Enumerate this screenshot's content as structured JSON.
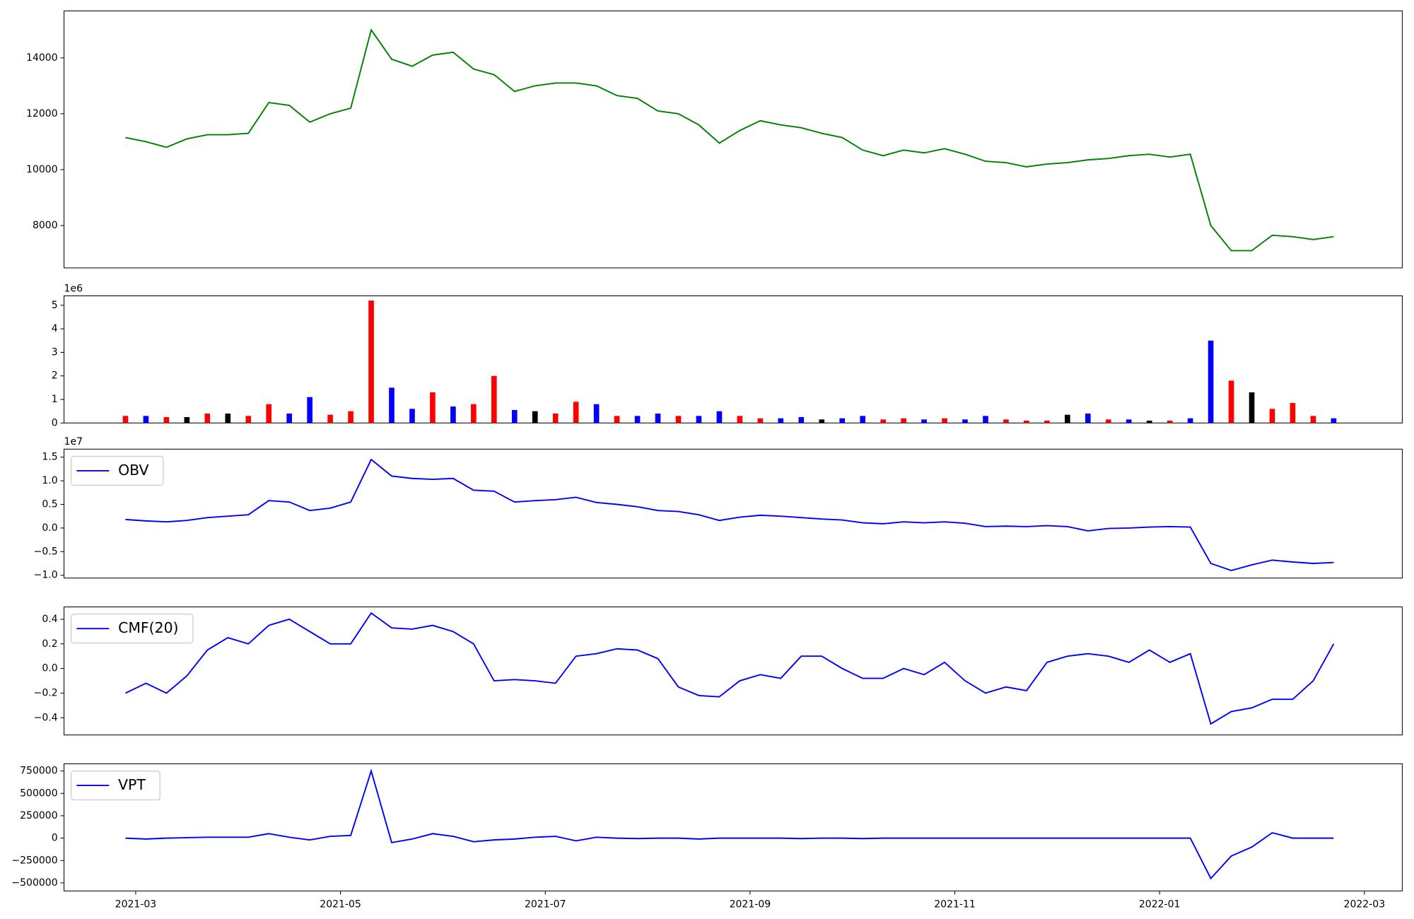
{
  "chart_data": [
    {
      "type": "line",
      "color": "green",
      "x": [
        1.9,
        2.1,
        2.3,
        2.5,
        2.7,
        2.9,
        3.1,
        3.3,
        3.5,
        3.7,
        3.9,
        4.1,
        4.3,
        4.5,
        4.7,
        4.9,
        5.1,
        5.3,
        5.5,
        5.7,
        5.9,
        6.1,
        6.3,
        6.5,
        6.7,
        6.9,
        7.1,
        7.3,
        7.5,
        7.7,
        7.9,
        8.1,
        8.3,
        8.5,
        8.7,
        8.9,
        9.1,
        9.3,
        9.5,
        9.7,
        9.9,
        10.1,
        10.3,
        10.5,
        10.7,
        10.9,
        11.1,
        11.3,
        11.5,
        11.7,
        11.9,
        12.1,
        12.3,
        12.5,
        12.7,
        12.9,
        13.1,
        13.3,
        13.5,
        13.7
      ],
      "values": [
        11150,
        11000,
        10800,
        11100,
        11250,
        11250,
        11300,
        12400,
        12300,
        11700,
        12000,
        12200,
        15000,
        13950,
        13700,
        14100,
        14200,
        13600,
        13400,
        12800,
        13000,
        13100,
        13100,
        13000,
        12650,
        12550,
        12100,
        12000,
        11600,
        10950,
        11400,
        11750,
        11600,
        11500,
        11300,
        11150,
        10700,
        10500,
        10700,
        10600,
        10750,
        10550,
        10300,
        10250,
        10100,
        10200,
        10250,
        10350,
        10400,
        10500,
        10550,
        10450,
        10550,
        8000,
        7100,
        7100,
        7650,
        7600,
        7500,
        7600
      ],
      "xlim": [
        1.3,
        14.37
      ],
      "ylim": [
        6484,
        15680
      ],
      "yticks": [
        8000,
        10000,
        12000,
        14000
      ]
    },
    {
      "type": "bar",
      "offset_text": "1e6",
      "x": [
        1.9,
        2.1,
        2.3,
        2.5,
        2.7,
        2.9,
        3.1,
        3.3,
        3.5,
        3.7,
        3.9,
        4.1,
        4.3,
        4.5,
        4.7,
        4.9,
        5.1,
        5.3,
        5.5,
        5.7,
        5.9,
        6.1,
        6.3,
        6.5,
        6.7,
        6.9,
        7.1,
        7.3,
        7.5,
        7.7,
        7.9,
        8.1,
        8.3,
        8.5,
        8.7,
        8.9,
        9.1,
        9.3,
        9.5,
        9.7,
        9.9,
        10.1,
        10.3,
        10.5,
        10.7,
        10.9,
        11.1,
        11.3,
        11.5,
        11.7,
        11.9,
        12.1,
        12.3,
        12.5,
        12.7,
        12.9,
        13.1,
        13.3,
        13.5,
        13.7
      ],
      "values": [
        300000,
        300000,
        250000,
        250000,
        400000,
        400000,
        300000,
        800000,
        400000,
        1100000,
        350000,
        500000,
        5200000,
        1500000,
        600000,
        1300000,
        700000,
        800000,
        2000000,
        550000,
        500000,
        400000,
        900000,
        800000,
        300000,
        300000,
        400000,
        300000,
        300000,
        500000,
        300000,
        200000,
        200000,
        250000,
        150000,
        200000,
        300000,
        150000,
        200000,
        150000,
        200000,
        150000,
        300000,
        150000,
        100000,
        100000,
        350000,
        400000,
        150000,
        150000,
        100000,
        100000,
        200000,
        3500000,
        1800000,
        1300000,
        600000,
        850000,
        300000,
        200000
      ],
      "colors": [
        "red",
        "blue",
        "red",
        "black",
        "red",
        "black",
        "red",
        "red",
        "blue",
        "blue",
        "red",
        "red",
        "red",
        "blue",
        "blue",
        "red",
        "blue",
        "red",
        "red",
        "blue",
        "black",
        "red",
        "red",
        "blue",
        "red",
        "blue",
        "blue",
        "red",
        "blue",
        "blue",
        "red",
        "red",
        "blue",
        "blue",
        "black",
        "blue",
        "blue",
        "red",
        "red",
        "blue",
        "red",
        "blue",
        "blue",
        "red",
        "red",
        "red",
        "black",
        "blue",
        "red",
        "blue",
        "black",
        "red",
        "blue",
        "blue",
        "red",
        "black",
        "red",
        "red",
        "red",
        "blue"
      ],
      "xlim": [
        1.3,
        14.37
      ],
      "ylim": [
        0,
        5400000
      ],
      "yticks": [
        0,
        {
          "value": 1000000,
          "label": "1"
        },
        {
          "value": 2000000,
          "label": "2"
        },
        {
          "value": 3000000,
          "label": "3"
        },
        {
          "value": 4000000,
          "label": "4"
        },
        {
          "value": 5000000,
          "label": "5"
        }
      ]
    },
    {
      "type": "line",
      "offset_text": "1e7",
      "legend": "upper left",
      "x": [
        1.9,
        2.1,
        2.3,
        2.5,
        2.7,
        2.9,
        3.1,
        3.3,
        3.5,
        3.7,
        3.9,
        4.1,
        4.3,
        4.5,
        4.7,
        4.9,
        5.1,
        5.3,
        5.5,
        5.7,
        5.9,
        6.1,
        6.3,
        6.5,
        6.7,
        6.9,
        7.1,
        7.3,
        7.5,
        7.7,
        7.9,
        8.1,
        8.3,
        8.5,
        8.7,
        8.9,
        9.1,
        9.3,
        9.5,
        9.7,
        9.9,
        10.1,
        10.3,
        10.5,
        10.7,
        10.9,
        11.1,
        11.3,
        11.5,
        11.7,
        11.9,
        12.1,
        12.3,
        12.5,
        12.7,
        12.9,
        13.1,
        13.3,
        13.5,
        13.7
      ],
      "series": [
        {
          "name": "OBV",
          "color": "blue",
          "values": [
            1800000,
            1500000,
            1300000,
            1600000,
            2200000,
            2500000,
            2800000,
            5800000,
            5500000,
            3700000,
            4200000,
            5500000,
            14500000,
            11000000,
            10500000,
            10300000,
            10500000,
            8000000,
            7800000,
            5500000,
            5800000,
            6000000,
            6500000,
            5400000,
            5000000,
            4500000,
            3700000,
            3500000,
            2800000,
            1600000,
            2300000,
            2700000,
            2500000,
            2200000,
            1900000,
            1700000,
            1100000,
            900000,
            1300000,
            1100000,
            1300000,
            1000000,
            300000,
            400000,
            300000,
            500000,
            300000,
            -600000,
            -100000,
            0,
            200000,
            300000,
            200000,
            -7500000,
            -9000000,
            -7800000,
            -6800000,
            -7200000,
            -7500000,
            -7300000
          ]
        }
      ],
      "xlim": [
        1.3,
        14.37
      ],
      "ylim": [
        -10600000,
        16700000
      ],
      "yticks": [
        {
          "value": -10000000,
          "label": "−1.0"
        },
        {
          "value": -5000000,
          "label": "−0.5"
        },
        {
          "value": 0,
          "label": "0.0"
        },
        {
          "value": 5000000,
          "label": "0.5"
        },
        {
          "value": 10000000,
          "label": "1.0"
        },
        {
          "value": 15000000,
          "label": "1.5"
        }
      ]
    },
    {
      "type": "line",
      "legend": "upper left",
      "x": [
        1.9,
        2.1,
        2.3,
        2.5,
        2.7,
        2.9,
        3.1,
        3.3,
        3.5,
        3.7,
        3.9,
        4.1,
        4.3,
        4.5,
        4.7,
        4.9,
        5.1,
        5.3,
        5.5,
        5.7,
        5.9,
        6.1,
        6.3,
        6.5,
        6.7,
        6.9,
        7.1,
        7.3,
        7.5,
        7.7,
        7.9,
        8.1,
        8.3,
        8.5,
        8.7,
        8.9,
        9.1,
        9.3,
        9.5,
        9.7,
        9.9,
        10.1,
        10.3,
        10.5,
        10.7,
        10.9,
        11.1,
        11.3,
        11.5,
        11.7,
        11.9,
        12.1,
        12.3,
        12.5,
        12.7,
        12.9,
        13.1,
        13.3,
        13.5,
        13.7
      ],
      "series": [
        {
          "name": "CMF(20)",
          "color": "blue",
          "values": [
            -0.2,
            -0.12,
            -0.2,
            -0.06,
            0.15,
            0.25,
            0.2,
            0.35,
            0.4,
            0.3,
            0.2,
            0.2,
            0.45,
            0.33,
            0.32,
            0.35,
            0.3,
            0.2,
            -0.1,
            -0.09,
            -0.1,
            -0.12,
            0.1,
            0.12,
            0.16,
            0.15,
            0.08,
            -0.15,
            -0.22,
            -0.23,
            -0.1,
            -0.05,
            -0.08,
            0.1,
            0.1,
            0.0,
            -0.08,
            -0.08,
            0.0,
            -0.05,
            0.05,
            -0.1,
            -0.2,
            -0.15,
            -0.18,
            0.05,
            0.1,
            0.12,
            0.1,
            0.05,
            0.15,
            0.05,
            0.12,
            -0.45,
            -0.35,
            -0.32,
            -0.25,
            -0.25,
            -0.1,
            0.2
          ]
        }
      ],
      "xlim": [
        1.3,
        14.37
      ],
      "ylim": [
        -0.54,
        0.5
      ],
      "yticks": [
        {
          "value": -0.4,
          "label": "−0.4"
        },
        {
          "value": -0.2,
          "label": "−0.2"
        },
        {
          "value": 0,
          "label": "0.0"
        },
        {
          "value": 0.2,
          "label": "0.2"
        },
        {
          "value": 0.4,
          "label": "0.4"
        }
      ]
    },
    {
      "type": "line",
      "legend": "upper left",
      "x": [
        1.9,
        2.1,
        2.3,
        2.5,
        2.7,
        2.9,
        3.1,
        3.3,
        3.5,
        3.7,
        3.9,
        4.1,
        4.3,
        4.5,
        4.7,
        4.9,
        5.1,
        5.3,
        5.5,
        5.7,
        5.9,
        6.1,
        6.3,
        6.5,
        6.7,
        6.9,
        7.1,
        7.3,
        7.5,
        7.7,
        7.9,
        8.1,
        8.3,
        8.5,
        8.7,
        8.9,
        9.1,
        9.3,
        9.5,
        9.7,
        9.9,
        10.1,
        10.3,
        10.5,
        10.7,
        10.9,
        11.1,
        11.3,
        11.5,
        11.7,
        11.9,
        12.1,
        12.3,
        12.5,
        12.7,
        12.9,
        13.1,
        13.3,
        13.5,
        13.7
      ],
      "series": [
        {
          "name": "VPT",
          "color": "blue",
          "values": [
            0,
            -10000,
            0,
            5000,
            10000,
            10000,
            10000,
            50000,
            10000,
            -20000,
            20000,
            30000,
            750000,
            -50000,
            -10000,
            50000,
            20000,
            -40000,
            -20000,
            -10000,
            10000,
            20000,
            -30000,
            10000,
            0,
            -5000,
            0,
            0,
            -10000,
            0,
            0,
            0,
            0,
            -5000,
            0,
            0,
            -5000,
            0,
            0,
            0,
            0,
            0,
            0,
            0,
            0,
            0,
            0,
            0,
            0,
            0,
            0,
            0,
            0,
            -450000,
            -200000,
            -100000,
            60000,
            0,
            0,
            0
          ]
        }
      ],
      "xlim": [
        1.3,
        14.37
      ],
      "ylim": [
        -590000,
        830000
      ],
      "yticks": [
        {
          "value": -500000,
          "label": "−500000"
        },
        {
          "value": -250000,
          "label": "−250000"
        },
        0,
        250000,
        500000,
        750000
      ],
      "xticks": [
        {
          "value": 2,
          "label": "2021-03"
        },
        {
          "value": 4,
          "label": "2021-05"
        },
        {
          "value": 6,
          "label": "2021-07"
        },
        {
          "value": 8,
          "label": "2021-09"
        },
        {
          "value": 10,
          "label": "2021-11"
        },
        {
          "value": 12,
          "label": "2022-01"
        },
        {
          "value": 14,
          "label": "2022-03"
        }
      ]
    }
  ]
}
